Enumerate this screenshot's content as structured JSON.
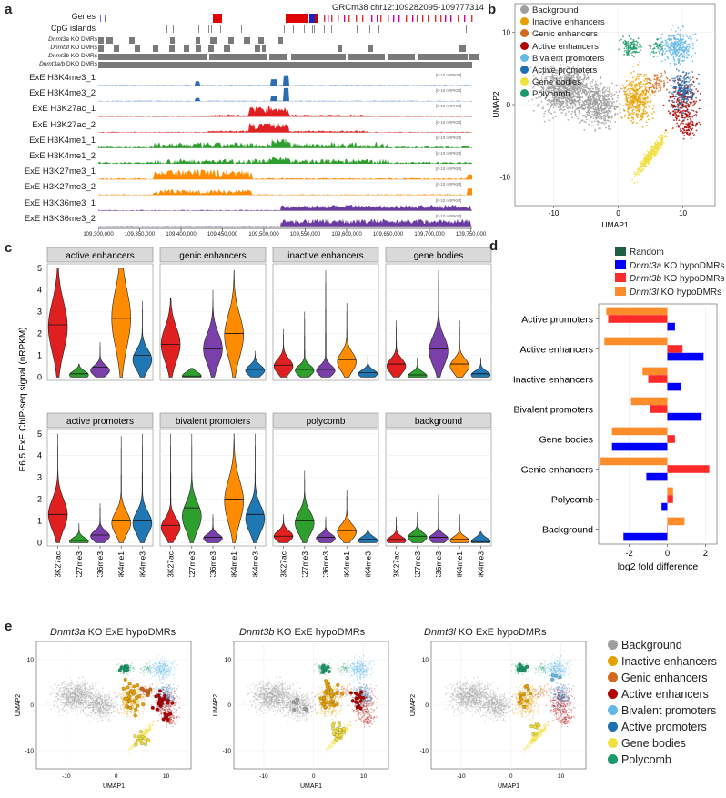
{
  "panel_a": {
    "letter": "a",
    "coords": "GRCm38 chr12:109282095-109777314",
    "annotation_tracks": [
      "Genes",
      "CpG islands"
    ],
    "dmr_tracks": [
      {
        "gene": "Dnmt3a",
        "suffix": " KO DMRs"
      },
      {
        "gene": "Dnmt3l",
        "suffix": " KO DMRs"
      },
      {
        "gene": "Dnmt3b",
        "suffix": " KO DMRs"
      },
      {
        "gene": "Dnmt3a/b",
        "suffix": " DKO DMRs"
      }
    ],
    "signal_tracks": [
      {
        "label": "ExE H3K4me3_1",
        "color": "#2a6db5"
      },
      {
        "label": "ExE H3K4me3_2",
        "color": "#2a6db5"
      },
      {
        "label": "ExE H3K27ac_1",
        "color": "#e02020"
      },
      {
        "label": "ExE H3K27ac_2",
        "color": "#e02020"
      },
      {
        "label": "ExE H3K4me1_1",
        "color": "#2e9e2e"
      },
      {
        "label": "ExE H3K4me1_2",
        "color": "#2e9e2e"
      },
      {
        "label": "ExE H3K27me3_1",
        "color": "#ff8c00"
      },
      {
        "label": "ExE H3K27me3_2",
        "color": "#ff8c00"
      },
      {
        "label": "ExE H3K36me3_1",
        "color": "#6a3ba0"
      },
      {
        "label": "ExE H3K36me3_2",
        "color": "#6a3ba0"
      }
    ],
    "scale_label": "[0-10 nRPKM]",
    "x_ticks": [
      "109,300,000",
      "109,350,000",
      "109,400,000",
      "109,450,000",
      "109,500,000",
      "109,550,000",
      "109,600,000",
      "109,650,000",
      "109,700,000",
      "109,750,000"
    ]
  },
  "categories": [
    {
      "name": "Background",
      "color": "#9e9e9e"
    },
    {
      "name": "Inactive enhancers",
      "color": "#e6a100"
    },
    {
      "name": "Genic enhancers",
      "color": "#d2691e"
    },
    {
      "name": "Active enhancers",
      "color": "#b00000"
    },
    {
      "name": "Bivalent promoters",
      "color": "#63b8e6"
    },
    {
      "name": "Active promoters",
      "color": "#1f6fb0"
    },
    {
      "name": "Gene bodies",
      "color": "#f0e040"
    },
    {
      "name": "Polycomb",
      "color": "#1a9a6a"
    }
  ],
  "panel_b": {
    "letter": "b",
    "xlabel": "UMAP1",
    "ylabel": "UMAP2",
    "x_ticks": [
      "-10",
      "0",
      "10"
    ],
    "y_ticks": [
      "10",
      "0",
      "-10"
    ]
  },
  "panel_c": {
    "letter": "c",
    "ylabel": "E6.5 ExE ChIP-seq signal (nRPKM)",
    "y_ticks": [
      "0",
      "1",
      "2",
      "3",
      "4",
      "5"
    ],
    "marks": [
      "H3K27ac",
      "H3K27me3",
      "H3K36me3",
      "H3K4me1",
      "H3K4me3"
    ],
    "mark_colors": [
      "#e02020",
      "#2e9e2e",
      "#7a3fa8",
      "#ff8c00",
      "#1f77b4"
    ],
    "facets": [
      {
        "title": "active enhancers",
        "medians": [
          2.4,
          0.15,
          0.45,
          2.7,
          1.0
        ],
        "maxes": [
          5.0,
          0.6,
          1.6,
          5.0,
          3.5
        ],
        "peaks": [
          2.3,
          0.1,
          0.3,
          2.7,
          0.8
        ]
      },
      {
        "title": "genic enhancers",
        "medians": [
          1.5,
          0.05,
          1.3,
          2.0,
          0.35
        ],
        "maxes": [
          3.6,
          0.4,
          4.0,
          4.9,
          1.2
        ],
        "peaks": [
          1.5,
          0.05,
          1.3,
          1.9,
          0.3
        ]
      },
      {
        "title": "inactive enhancers",
        "medians": [
          0.55,
          0.35,
          0.35,
          0.8,
          0.2
        ],
        "maxes": [
          2.2,
          3.0,
          4.9,
          3.4,
          1.5
        ],
        "peaks": [
          0.5,
          0.3,
          0.3,
          0.7,
          0.15
        ]
      },
      {
        "title": "gene bodies",
        "medians": [
          0.6,
          0.1,
          1.3,
          0.6,
          0.15
        ],
        "maxes": [
          2.6,
          0.9,
          4.9,
          2.6,
          0.9
        ],
        "peaks": [
          0.5,
          0.05,
          1.2,
          0.5,
          0.1
        ]
      },
      {
        "title": "active promoters",
        "medians": [
          1.3,
          0.1,
          0.35,
          1.0,
          1.0
        ],
        "maxes": [
          5.0,
          0.9,
          1.8,
          4.9,
          5.0
        ],
        "peaks": [
          1.3,
          0.05,
          0.3,
          0.9,
          0.9
        ]
      },
      {
        "title": "bivalent promoters",
        "medians": [
          0.8,
          1.6,
          0.25,
          2.0,
          1.3
        ],
        "maxes": [
          5.0,
          5.0,
          1.3,
          5.0,
          5.0
        ],
        "peaks": [
          0.7,
          1.2,
          0.2,
          1.9,
          1.1
        ]
      },
      {
        "title": "polycomb",
        "medians": [
          0.3,
          1.0,
          0.25,
          0.55,
          0.15
        ],
        "maxes": [
          1.3,
          3.3,
          1.2,
          2.4,
          0.7
        ],
        "peaks": [
          0.3,
          0.9,
          0.2,
          0.5,
          0.1
        ]
      },
      {
        "title": "background",
        "medians": [
          0.15,
          0.3,
          0.25,
          0.15,
          0.05
        ],
        "maxes": [
          1.2,
          1.4,
          2.2,
          1.3,
          0.5
        ],
        "peaks": [
          0.1,
          0.25,
          0.2,
          0.1,
          0.05
        ]
      }
    ]
  },
  "panel_d": {
    "letter": "d",
    "xlabel": "log2 fold difference",
    "x_ticks": [
      "-2",
      "0",
      "2"
    ],
    "legend": [
      {
        "gene": "Random",
        "suffix": "",
        "color": "#1e5e44"
      },
      {
        "gene": "Dnmt3a",
        "suffix": " KO hypoDMRs",
        "color": "#0000ff"
      },
      {
        "gene": "Dnmt3b",
        "suffix": " KO hypoDMRs",
        "color": "#ff2a2a"
      },
      {
        "gene": "Dnmt3l",
        "suffix": " KO hypoDMRs",
        "color": "#ff8c2a"
      }
    ],
    "chart_data": {
      "type": "bar",
      "orientation": "horizontal",
      "categories": [
        "Active promoters",
        "Active enhancers",
        "Inactive enhancers",
        "Bivalent promoters",
        "Gene bodies",
        "Genic enhancers",
        "Polycomb",
        "Background"
      ],
      "series": [
        {
          "name": "Dnmt3l KO hypoDMRs",
          "color": "#ff8c2a",
          "values": [
            -3.2,
            -3.3,
            -1.3,
            -1.9,
            -2.9,
            -3.5,
            0.3,
            0.9
          ]
        },
        {
          "name": "Dnmt3b KO hypoDMRs",
          "color": "#ff2a2a",
          "values": [
            -3.1,
            0.8,
            -1.0,
            -0.9,
            0.4,
            2.2,
            0.3,
            0.0
          ]
        },
        {
          "name": "Dnmt3a KO hypoDMRs",
          "color": "#0000ff",
          "values": [
            0.4,
            1.9,
            0.7,
            1.8,
            -2.9,
            -1.1,
            -0.3,
            -2.3
          ]
        }
      ],
      "xlabel": "log2 fold difference",
      "xlim": [
        -3.6,
        2.6
      ]
    }
  },
  "panel_e": {
    "letter": "e",
    "plots": [
      {
        "gene": "Dnmt3a",
        "suffix": " KO ExE hypoDMRs"
      },
      {
        "gene": "Dnmt3b",
        "suffix": " KO ExE hypoDMRs"
      },
      {
        "gene": "Dnmt3l",
        "suffix": " KO ExE hypoDMRs"
      }
    ],
    "xlabel": "UMAP1",
    "ylabel": "UMAP2",
    "x_ticks": [
      "-10",
      "0",
      "10"
    ],
    "y_ticks": [
      "10",
      "0",
      "-10"
    ]
  }
}
